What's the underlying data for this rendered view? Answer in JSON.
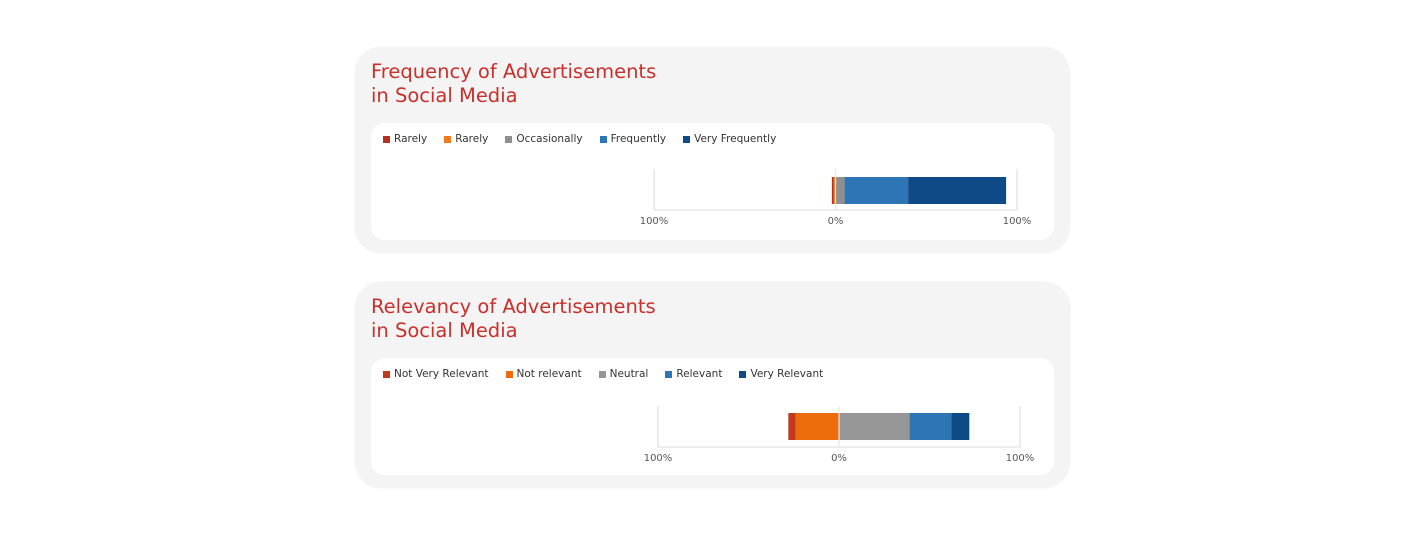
{
  "chart_data": [
    {
      "type": "bar",
      "orientation": "horizontal-diverging-stacked",
      "title": "Frequency of Advertisements in Social Media",
      "title_lines": [
        "Frequency of Advertisements",
        "in Social Media"
      ],
      "categories": [
        ""
      ],
      "series": [
        {
          "name": "Rarely",
          "values": [
            -1
          ],
          "color": "#b6321d"
        },
        {
          "name": "Rarely",
          "values": [
            -1
          ],
          "color": "#f07a1a"
        },
        {
          "name": "Occasionally",
          "values": [
            5
          ],
          "color": "#8f8f8f"
        },
        {
          "name": "Frequently",
          "values": [
            35
          ],
          "color": "#2e75b6"
        },
        {
          "name": "Very Frequently",
          "values": [
            54
          ],
          "color": "#0e4a85"
        }
      ],
      "xlim": [
        -100,
        100
      ],
      "xticks": [
        "100%",
        "0%",
        "100%"
      ]
    },
    {
      "type": "bar",
      "orientation": "horizontal-diverging-stacked",
      "title": "Relevancy of Advertisements in Social Media",
      "title_lines": [
        "Relevancy of Advertisements",
        "in Social Media"
      ],
      "categories": [
        ""
      ],
      "series": [
        {
          "name": "Not Very Relevant",
          "values": [
            -4
          ],
          "color": "#c23a1e"
        },
        {
          "name": "Not relevant",
          "values": [
            -24
          ],
          "color": "#ec6c0c"
        },
        {
          "name": "Neutral",
          "values": [
            39
          ],
          "color": "#969696"
        },
        {
          "name": "Relevant",
          "values": [
            23
          ],
          "color": "#2e75b6"
        },
        {
          "name": "Very Relevant",
          "values": [
            10
          ],
          "color": "#0e4a85"
        }
      ],
      "xlim": [
        -100,
        100
      ],
      "xticks": [
        "100%",
        "0%",
        "100%"
      ]
    }
  ]
}
